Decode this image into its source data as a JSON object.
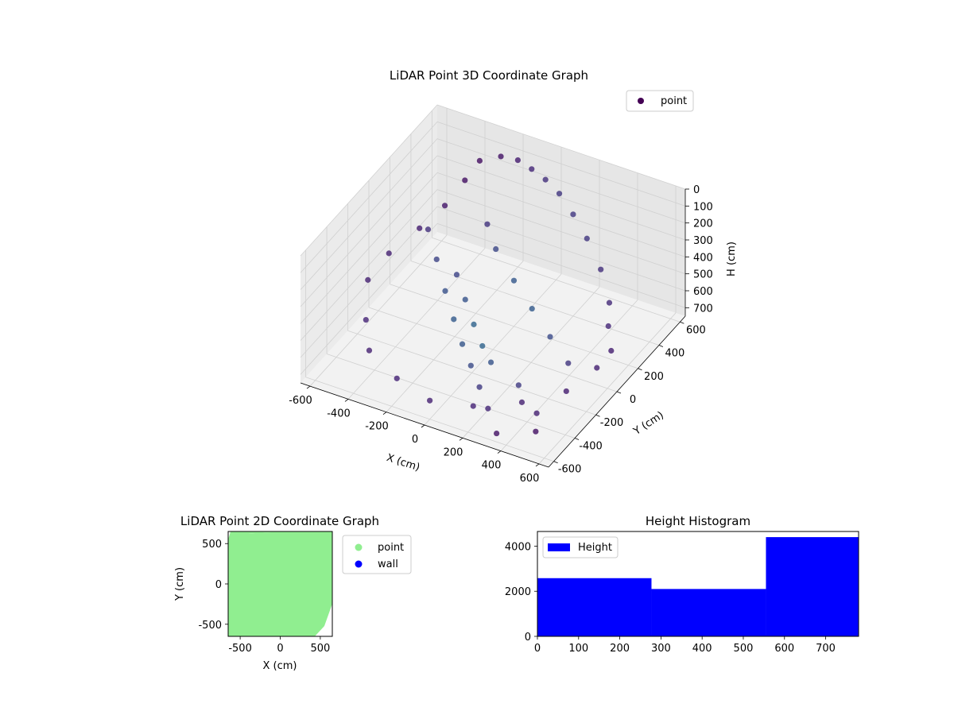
{
  "chart_data": [
    {
      "type": "scatter",
      "subtype": "3d",
      "title": "LiDAR Point 3D Coordinate Graph",
      "xlabel": "X (cm)",
      "ylabel": "Y (cm)",
      "zlabel": "H (cm)",
      "xlim": [
        -650,
        650
      ],
      "ylim": [
        -650,
        650
      ],
      "zlim": [
        0,
        750
      ],
      "zaxis_inverted": true,
      "xticks": [
        -600,
        -400,
        -200,
        0,
        200,
        400,
        600
      ],
      "yticks": [
        -600,
        -400,
        -200,
        0,
        200,
        400,
        600
      ],
      "zticks": [
        0,
        100,
        200,
        300,
        400,
        500,
        600,
        700
      ],
      "grid": true,
      "legend": {
        "location": "upper right",
        "entries": [
          {
            "label": "point",
            "color": "#3b0f70"
          }
        ]
      },
      "series": [
        {
          "name": "point",
          "colormap": "viridis",
          "note_points": "dense ring of points near floor level, rising strands near walls; representative sample",
          "points": [
            [
              -600,
              100,
              480
            ],
            [
              -550,
              300,
              450
            ],
            [
              -500,
              450,
              400
            ],
            [
              -450,
              550,
              300
            ],
            [
              -400,
              600,
              200
            ],
            [
              -300,
              620,
              150
            ],
            [
              -200,
              600,
              120
            ],
            [
              -100,
              550,
              100
            ],
            [
              0,
              500,
              90
            ],
            [
              100,
              450,
              100
            ],
            [
              200,
              400,
              150
            ],
            [
              300,
              350,
              220
            ],
            [
              400,
              300,
              330
            ],
            [
              500,
              200,
              420
            ],
            [
              550,
              100,
              470
            ],
            [
              -600,
              -100,
              500
            ],
            [
              -500,
              -300,
              560
            ],
            [
              -400,
              -450,
              600
            ],
            [
              -200,
              -550,
              620
            ],
            [
              0,
              -600,
              640
            ],
            [
              200,
              -550,
              630
            ],
            [
              400,
              -450,
              600
            ],
            [
              550,
              -300,
              580
            ],
            [
              600,
              -100,
              560
            ],
            [
              620,
              0,
              520
            ],
            [
              -300,
              200,
              560
            ],
            [
              -200,
              100,
              600
            ],
            [
              -100,
              0,
              640
            ],
            [
              0,
              -100,
              660
            ],
            [
              100,
              -200,
              650
            ],
            [
              300,
              -300,
              640
            ],
            [
              450,
              -400,
              680
            ],
            [
              500,
              -500,
              700
            ],
            [
              -250,
              400,
              380
            ],
            [
              -150,
              300,
              420
            ],
            [
              0,
              200,
              480
            ],
            [
              150,
              100,
              520
            ],
            [
              300,
              0,
              560
            ],
            [
              450,
              -100,
              590
            ],
            [
              -450,
              200,
              350
            ],
            [
              -350,
              100,
              420
            ],
            [
              -250,
              0,
              500
            ],
            [
              -150,
              -100,
              560
            ],
            [
              -50,
              -200,
              600
            ],
            [
              50,
              -300,
              620
            ],
            [
              150,
              -400,
              640
            ],
            [
              250,
              -500,
              660
            ],
            [
              350,
              -600,
              700
            ]
          ]
        }
      ]
    },
    {
      "type": "scatter",
      "title": "LiDAR Point 2D Coordinate Graph",
      "xlabel": "X (cm)",
      "ylabel": "Y (cm)",
      "xlim": [
        -650,
        650
      ],
      "ylim": [
        -650,
        650
      ],
      "xticks": [
        -500,
        0,
        500
      ],
      "yticks": [
        -500,
        0,
        500
      ],
      "legend": {
        "location": "outside right",
        "entries": [
          {
            "label": "point",
            "color": "#90ee90"
          },
          {
            "label": "wall",
            "color": "#0000ff"
          }
        ]
      },
      "series": [
        {
          "name": "point",
          "color": "#90ee90",
          "note": "points fill most of the plotted area"
        },
        {
          "name": "wall",
          "color": "#0000ff",
          "points": []
        }
      ]
    },
    {
      "type": "bar",
      "subtype": "histogram",
      "title": "Height Histogram",
      "xlim": [
        0,
        780
      ],
      "ylim": [
        0,
        4650
      ],
      "xticks": [
        0,
        100,
        200,
        300,
        400,
        500,
        600,
        700
      ],
      "yticks": [
        0,
        2000,
        4000
      ],
      "legend": {
        "location": "upper left",
        "entries": [
          {
            "label": "Height",
            "color": "#0000ff"
          }
        ]
      },
      "series": [
        {
          "name": "Height",
          "color": "#0000ff",
          "bins": [
            [
              0,
              277,
              2580
            ],
            [
              277,
              555,
              2100
            ],
            [
              555,
              780,
              4400
            ]
          ]
        }
      ]
    }
  ]
}
